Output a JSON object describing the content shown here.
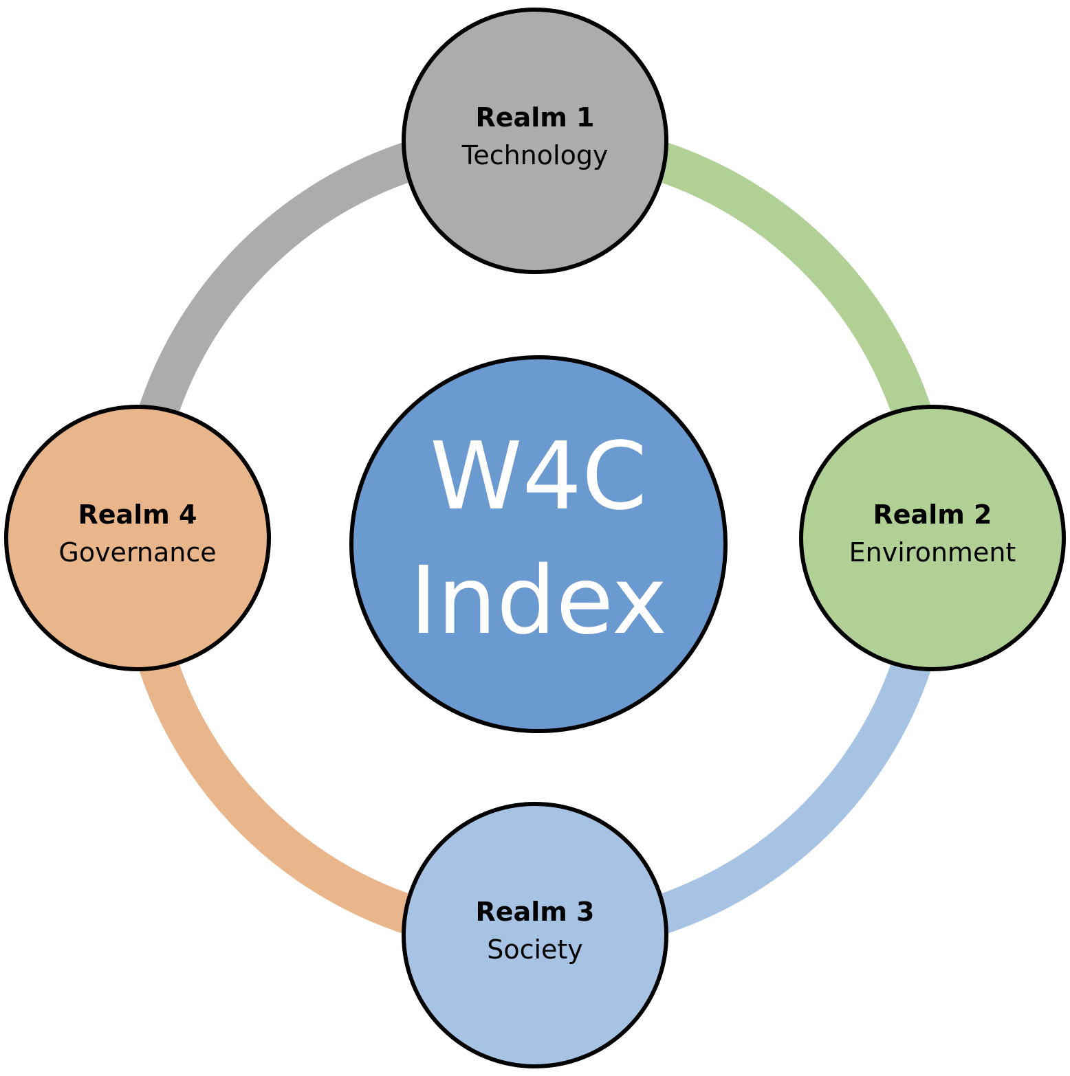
{
  "center": {
    "line1": "W4C",
    "line2": "Index",
    "color": "#6a9ad0"
  },
  "realms": [
    {
      "title": "Realm 1",
      "name": "Technology",
      "color": "#acacaa"
    },
    {
      "title": "Realm 2",
      "name": "Environment",
      "color": "#b1d095"
    },
    {
      "title": "Realm 3",
      "name": "Society",
      "color": "#a6c3e3"
    },
    {
      "title": "Realm 4",
      "name": "Governance",
      "color": "#e9b58a"
    }
  ],
  "connectors": [
    {
      "from": "Realm 1",
      "to": "Realm 2",
      "color": "#b1d095"
    },
    {
      "from": "Realm 2",
      "to": "Realm 3",
      "color": "#a6c3e3"
    },
    {
      "from": "Realm 3",
      "to": "Realm 4",
      "color": "#e9b58a"
    },
    {
      "from": "Realm 4",
      "to": "Realm 1",
      "color": "#acacaa"
    }
  ]
}
